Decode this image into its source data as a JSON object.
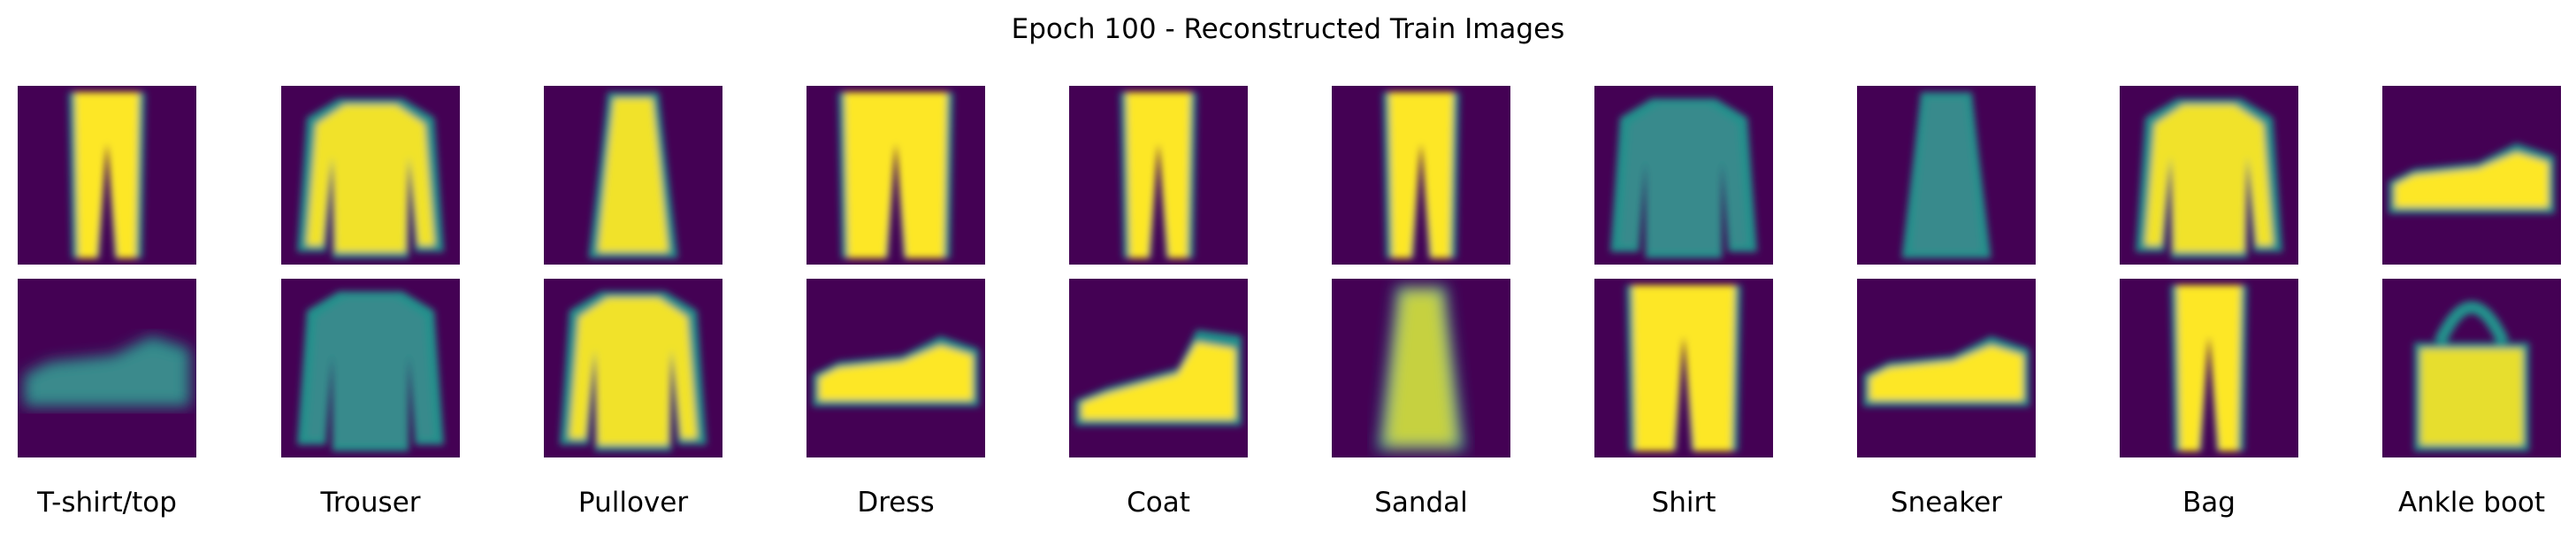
{
  "title": "Epoch 100 - Reconstructed Train Images",
  "labels": [
    "T-shirt/top",
    "Trouser",
    "Pullover",
    "Dress",
    "Coat",
    "Sandal",
    "Shirt",
    "Sneaker",
    "Bag",
    "Ankle boot"
  ],
  "colors": {
    "background": "#440154",
    "mid": "#21918c",
    "bright": "#fde725",
    "teal": "#3b8a8c"
  },
  "tiles": [
    [
      "trouser-narrow",
      "shirt-long-sleeve",
      "dress-narrow",
      "trouser-loose",
      "trouser-narrow",
      "trouser-straight",
      "shirt-long-sleeve-dim",
      "dress-narrow-dim",
      "coat-bright",
      "sneaker"
    ],
    [
      "sneaker-blurry",
      "shirt-long-sleeve-dim",
      "pullover-bright",
      "sneaker",
      "sneaker-high",
      "dress-blurry",
      "trouser-wide",
      "sneaker",
      "trouser-narrow",
      "bag"
    ]
  ]
}
